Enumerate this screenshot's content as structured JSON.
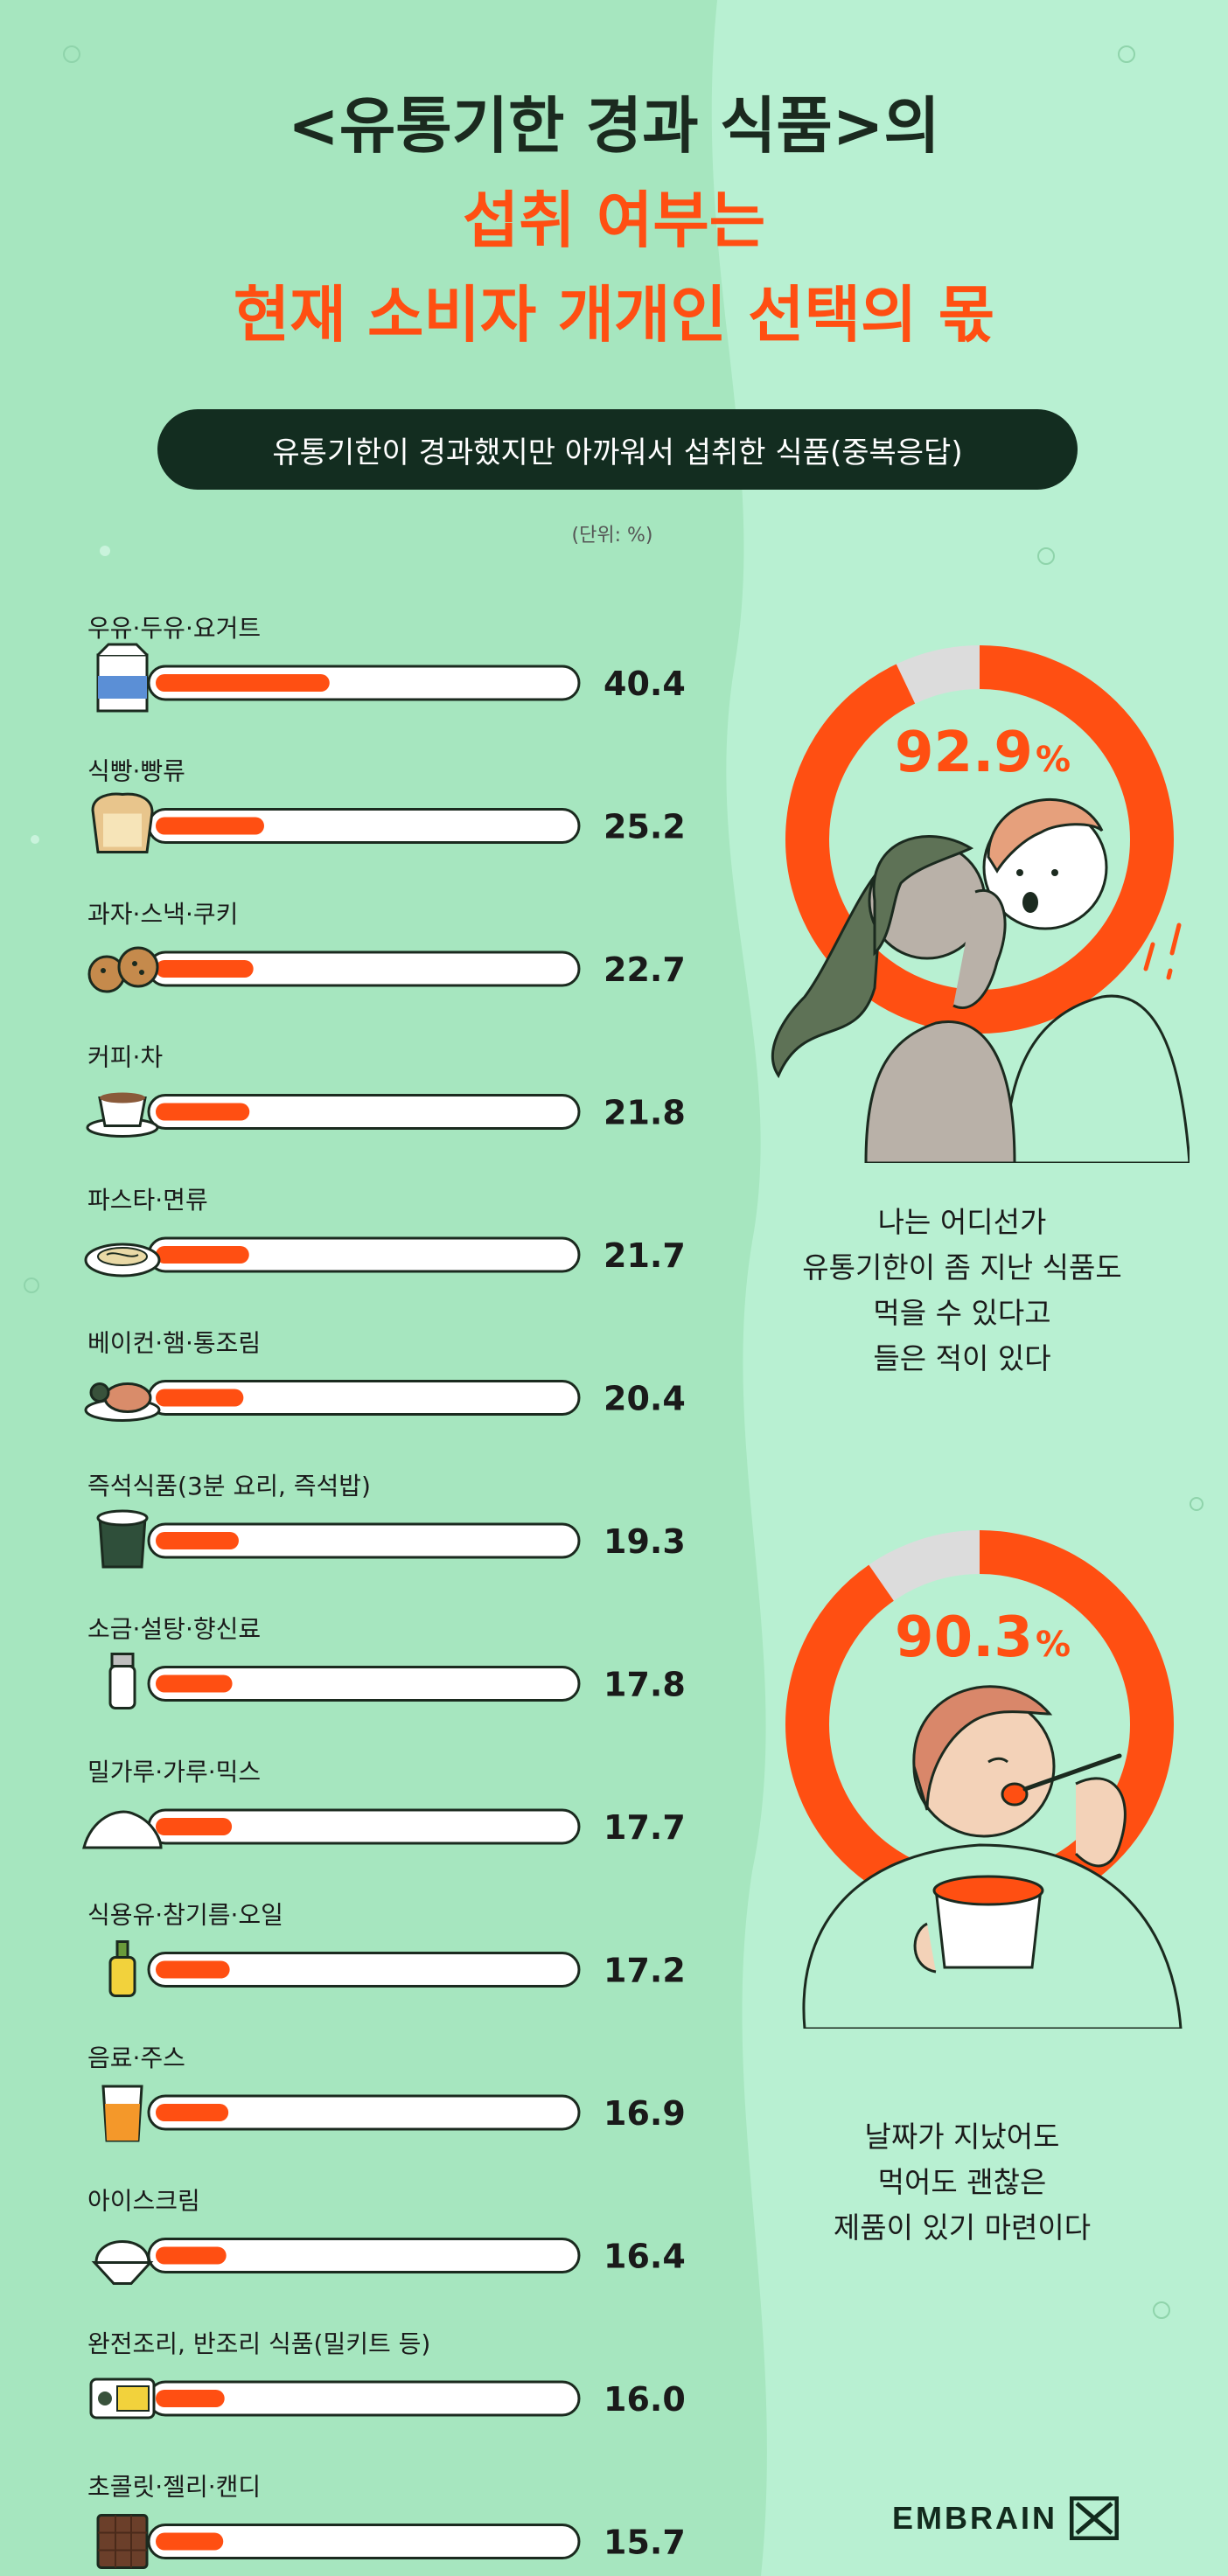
{
  "title": {
    "line1": "<유통기한 경과 식품>의",
    "line2": "섭취 여부는",
    "line3": "현재 소비자 개개인 선택의 몫"
  },
  "subtitle": "유통기한이 경과했지만 아까워서 섭취한 식품(중복응답)",
  "unit_note": "(단위: %)",
  "colors": {
    "accent": "#ff4f12",
    "dark": "#132d20",
    "bg_left": "#a6e6bf",
    "bg_right": "#b8f0d2",
    "track": "#ffffff",
    "gauge_track": "#dcdcdc"
  },
  "chart_data": [
    {
      "type": "bar",
      "orientation": "horizontal",
      "categories": [
        "우유·두유·요거트",
        "식빵·빵류",
        "과자·스낵·쿠키",
        "커피·차",
        "파스타·면류",
        "베이컨·햄·통조림",
        "즉석식품(3분 요리, 즉석밥)",
        "소금·설탕·향신료",
        "밀가루·가루·믹스",
        "식용유·참기름·오일",
        "음료·주스",
        "아이스크림",
        "완전조리, 반조리 식품(밀키트 등)",
        "초콜릿·젤리·캔디"
      ],
      "values": [
        40.4,
        25.2,
        22.7,
        21.8,
        21.7,
        20.4,
        19.3,
        17.8,
        17.7,
        17.2,
        16.9,
        16.4,
        16.0,
        15.7
      ],
      "value_labels": [
        "40.4",
        "25.2",
        "22.7",
        "21.8",
        "21.7",
        "20.4",
        "19.3",
        "17.8",
        "17.7",
        "17.2",
        "16.9",
        "16.4",
        "16.0",
        "15.7"
      ],
      "xlim": [
        0,
        100
      ],
      "icons": [
        "milk-carton-icon",
        "bread-icon",
        "cookie-icon",
        "coffee-cup-icon",
        "pasta-plate-icon",
        "ham-plate-icon",
        "instant-food-icon",
        "salt-shaker-icon",
        "flour-pile-icon",
        "oil-bottle-icon",
        "juice-glass-icon",
        "ice-cream-icon",
        "meal-kit-icon",
        "chocolate-bar-icon"
      ]
    },
    {
      "type": "pie",
      "style": "donut",
      "values": [
        92.9,
        7.1
      ],
      "value_label": "92.9",
      "suffix": "%"
    },
    {
      "type": "pie",
      "style": "donut",
      "values": [
        90.3,
        9.7
      ],
      "value_label": "90.3",
      "suffix": "%"
    }
  ],
  "captions": {
    "first": [
      "나는 어디선가",
      "유통기한이 좀 지난 식품도",
      "먹을 수 있다고",
      "들은 적이 있다"
    ],
    "second": [
      "날짜가 지났어도",
      "먹어도 괜찮은",
      "제품이 있기 마련이다"
    ]
  },
  "brand": "EMBRAIN"
}
